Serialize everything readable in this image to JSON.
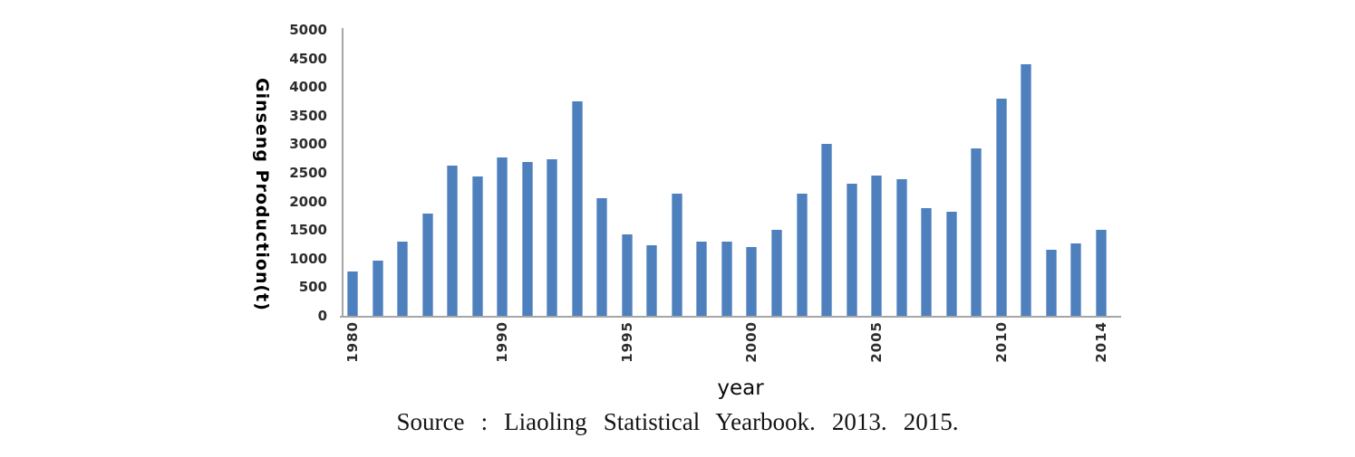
{
  "figure": {
    "source_caption": "Source : Liaoling Statistical Yearbook. 2013. 2015."
  },
  "chart_data": {
    "type": "bar",
    "title": "",
    "xlabel": "year",
    "ylabel": "Ginseng Production(t)",
    "ylim": [
      0,
      5000
    ],
    "ytick_step": 500,
    "yticks": [
      0,
      500,
      1000,
      1500,
      2000,
      2500,
      3000,
      3500,
      4000,
      4500,
      5000
    ],
    "grid": false,
    "legend": false,
    "bar_color": "#4d80bc",
    "bar_edge_color": "#87aad4",
    "axis_line_color": "#a6a6a6",
    "categories": [
      1980,
      1985,
      1986,
      1987,
      1988,
      1989,
      1990,
      1991,
      1992,
      1993,
      1994,
      1995,
      1996,
      1997,
      1998,
      1999,
      2000,
      2001,
      2002,
      2003,
      2004,
      2005,
      2006,
      2007,
      2008,
      2009,
      2010,
      2011,
      2012,
      2013,
      2014
    ],
    "values": [
      780,
      970,
      1290,
      1790,
      2620,
      2440,
      2770,
      2690,
      2730,
      3750,
      2050,
      1430,
      1230,
      2130,
      1300,
      1300,
      1210,
      1500,
      2130,
      3010,
      2310,
      2460,
      2390,
      1890,
      1820,
      2920,
      3800,
      4400,
      1160,
      1260,
      1500
    ],
    "x_tick_labels": [
      "1980",
      "1990",
      "1995",
      "2000",
      "2005",
      "2010",
      "2014"
    ],
    "x_tick_indices": [
      0,
      6,
      11,
      16,
      21,
      26,
      30
    ]
  }
}
